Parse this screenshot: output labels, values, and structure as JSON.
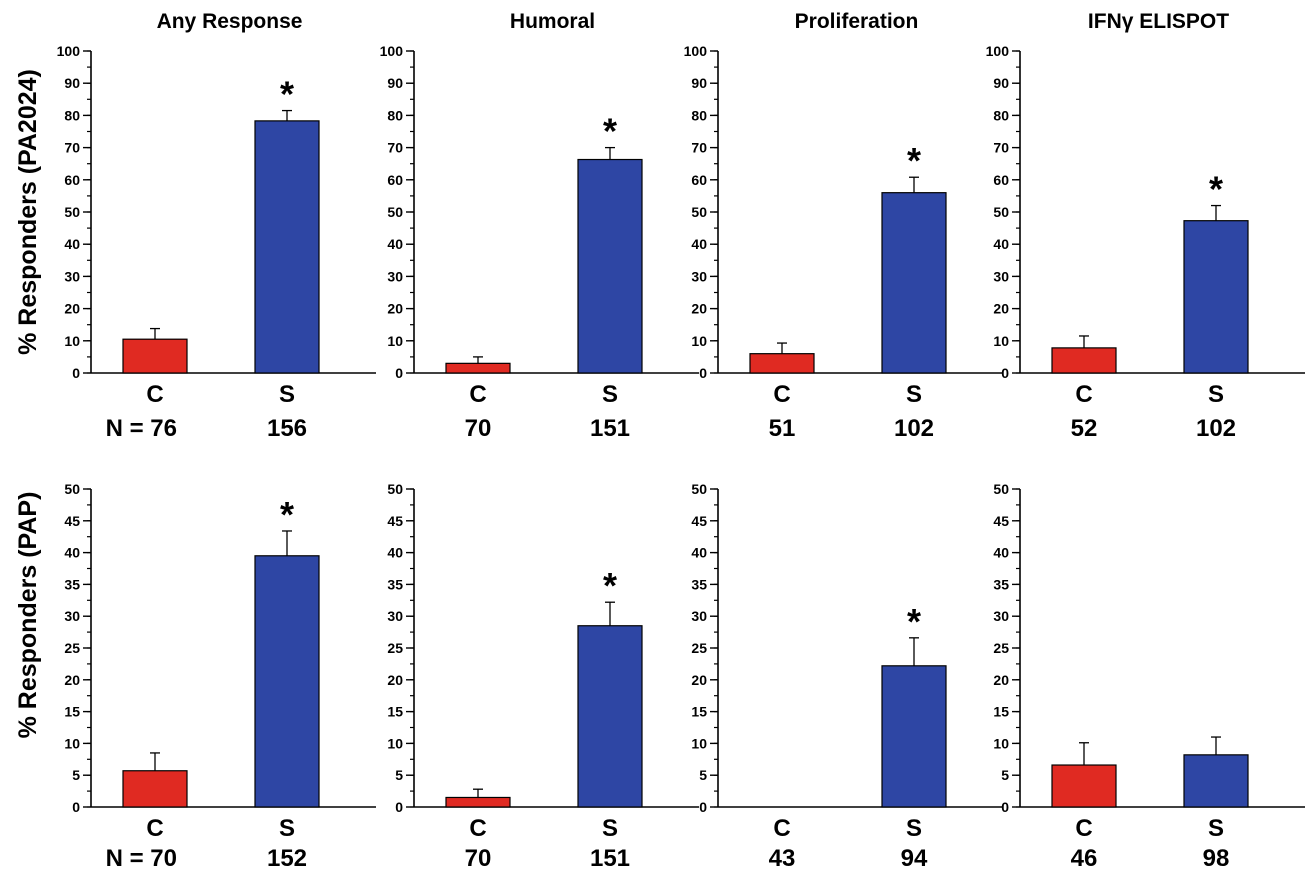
{
  "colors": {
    "control": "#e02a22",
    "stim": "#2e46a4",
    "axis": "#000000"
  },
  "row_labels": [
    "% Responders (PA2024)",
    "% Responders (PAP)"
  ],
  "n_prefix": "N = ",
  "chart_data": [
    {
      "type": "bar",
      "title": "Any Response",
      "ylabel": "% Responders (PA2024)",
      "categories": [
        "C",
        "S"
      ],
      "values": [
        10.5,
        78.3
      ],
      "errors": [
        3.3,
        3.2
      ],
      "n": [
        "76",
        "156"
      ],
      "ylim": [
        0,
        100
      ],
      "major": 10,
      "minor": 5,
      "significant": [
        false,
        true
      ],
      "marker": "*"
    },
    {
      "type": "bar",
      "title": "Humoral",
      "categories": [
        "C",
        "S"
      ],
      "values": [
        3,
        66.3
      ],
      "errors": [
        2,
        3.7
      ],
      "n": [
        "70",
        "151"
      ],
      "ylim": [
        0,
        100
      ],
      "major": 10,
      "minor": 5,
      "significant": [
        false,
        true
      ],
      "marker": "*"
    },
    {
      "type": "bar",
      "title": "Proliferation",
      "categories": [
        "C",
        "S"
      ],
      "values": [
        6,
        56
      ],
      "errors": [
        3.3,
        4.8
      ],
      "n": [
        "51",
        "102"
      ],
      "ylim": [
        0,
        100
      ],
      "major": 10,
      "minor": 5,
      "significant": [
        false,
        true
      ],
      "marker": "*"
    },
    {
      "type": "bar",
      "title": "IFNγ ELISPOT",
      "categories": [
        "C",
        "S"
      ],
      "values": [
        7.8,
        47.3
      ],
      "errors": [
        3.7,
        4.7
      ],
      "n": [
        "52",
        "102"
      ],
      "ylim": [
        0,
        100
      ],
      "major": 10,
      "minor": 5,
      "significant": [
        false,
        true
      ],
      "marker": "*"
    },
    {
      "type": "bar",
      "title": "",
      "ylabel": "% Responders (PAP)",
      "categories": [
        "C",
        "S"
      ],
      "values": [
        5.7,
        39.5
      ],
      "errors": [
        2.8,
        3.9
      ],
      "n": [
        "70",
        "152"
      ],
      "ylim": [
        0,
        50
      ],
      "major": 5,
      "minor": 2.5,
      "significant": [
        false,
        true
      ],
      "marker": "*"
    },
    {
      "type": "bar",
      "title": "",
      "categories": [
        "C",
        "S"
      ],
      "values": [
        1.5,
        28.5
      ],
      "errors": [
        1.3,
        3.7
      ],
      "n": [
        "70",
        "151"
      ],
      "ylim": [
        0,
        50
      ],
      "major": 5,
      "minor": 2.5,
      "significant": [
        false,
        true
      ],
      "marker": "*"
    },
    {
      "type": "bar",
      "title": "",
      "categories": [
        "C",
        "S"
      ],
      "values": [
        0,
        22.2
      ],
      "errors": [
        0,
        4.4
      ],
      "n": [
        "43",
        "94"
      ],
      "ylim": [
        0,
        50
      ],
      "major": 5,
      "minor": 2.5,
      "significant": [
        false,
        true
      ],
      "marker": "*"
    },
    {
      "type": "bar",
      "title": "",
      "categories": [
        "C",
        "S"
      ],
      "values": [
        6.6,
        8.2
      ],
      "errors": [
        3.5,
        2.8
      ],
      "n": [
        "46",
        "98"
      ],
      "ylim": [
        0,
        50
      ],
      "major": 5,
      "minor": 2.5,
      "significant": [
        false,
        false
      ],
      "marker": "*"
    }
  ]
}
